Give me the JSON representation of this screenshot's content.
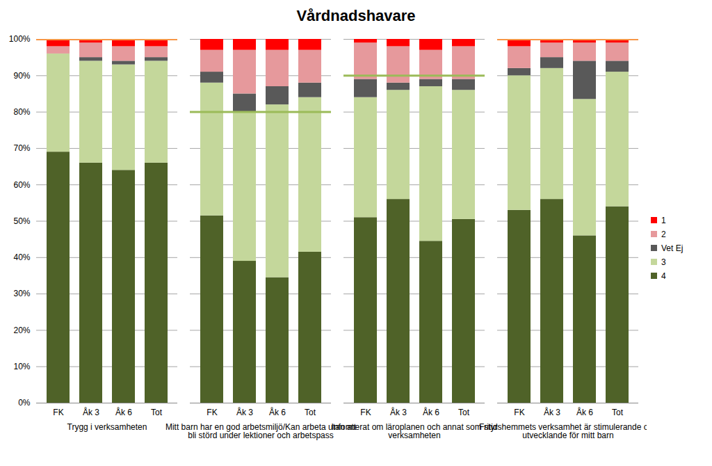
{
  "chart_data": {
    "type": "bar",
    "stacked": true,
    "title": "Vårdnadshavare",
    "groups": [
      "Trygg i verksamheten",
      "Mitt barn har en god arbetsmiljö/Kan arbeta utan att bli störd under lektioner och arbetspass",
      "Informerat om läroplanen och annat som styr verksamheten",
      "Fritidshemmets verksamhet är stimulerande och utvecklande för mitt barn"
    ],
    "categories": [
      "FK",
      "Åk 3",
      "Åk 6",
      "Tot"
    ],
    "series": [
      {
        "name": "1",
        "color": "#ff0000",
        "values": [
          [
            2,
            1,
            2,
            2
          ],
          [
            3,
            3,
            3,
            3
          ],
          [
            1,
            2,
            3,
            2
          ],
          [
            2,
            1,
            1,
            1
          ]
        ]
      },
      {
        "name": "2",
        "color": "#e6999c",
        "values": [
          [
            2,
            4,
            4,
            3
          ],
          [
            6,
            12,
            10,
            9
          ],
          [
            10,
            10,
            8,
            9
          ],
          [
            6,
            4,
            5,
            5
          ]
        ]
      },
      {
        "name": "Vet Ej",
        "color": "#595959",
        "values": [
          [
            0,
            1,
            1,
            1
          ],
          [
            3,
            5,
            5,
            4
          ],
          [
            5,
            2,
            2,
            3
          ],
          [
            2,
            3,
            10.5,
            3
          ]
        ]
      },
      {
        "name": "3",
        "color": "#c4d79b",
        "values": [
          [
            27,
            28,
            29,
            28
          ],
          [
            36.5,
            41,
            47.5,
            42.5
          ],
          [
            33,
            30,
            42.5,
            35.5
          ],
          [
            37,
            36,
            37.5,
            37
          ]
        ]
      },
      {
        "name": "4",
        "color": "#4f6228",
        "values": [
          [
            69,
            66,
            64,
            66
          ],
          [
            51.5,
            39,
            34.5,
            41.5
          ],
          [
            51,
            56,
            44.5,
            50.5
          ],
          [
            53,
            56,
            46,
            54
          ]
        ]
      }
    ],
    "reference_lines": [
      {
        "group": "Trygg i verksamheten",
        "value": 100,
        "color": "#f79646"
      },
      {
        "group": "Mitt barn har en god arbetsmiljö/Kan arbeta utan att bli störd under lektioner och arbetspass",
        "value": 80,
        "color": "#9bbb59"
      },
      {
        "group": "Informerat om läroplanen och annat som styr verksamheten",
        "value": 90,
        "color": "#9bbb59"
      },
      {
        "group": "Fritidshemmets verksamhet är stimulerande och utvecklande för mitt barn",
        "value": 100,
        "color": "#f79646"
      }
    ],
    "ylim": [
      0,
      100
    ],
    "yticks": [
      {
        "value": 0,
        "label": "0%"
      },
      {
        "value": 10,
        "label": "10%"
      },
      {
        "value": 20,
        "label": "20%"
      },
      {
        "value": 30,
        "label": "30%"
      },
      {
        "value": 40,
        "label": "40%"
      },
      {
        "value": 50,
        "label": "50%"
      },
      {
        "value": 60,
        "label": "60%"
      },
      {
        "value": 70,
        "label": "70%"
      },
      {
        "value": 80,
        "label": "80%"
      },
      {
        "value": 90,
        "label": "90%"
      },
      {
        "value": 100,
        "label": "100%"
      }
    ],
    "grid": true,
    "legend": "right"
  }
}
